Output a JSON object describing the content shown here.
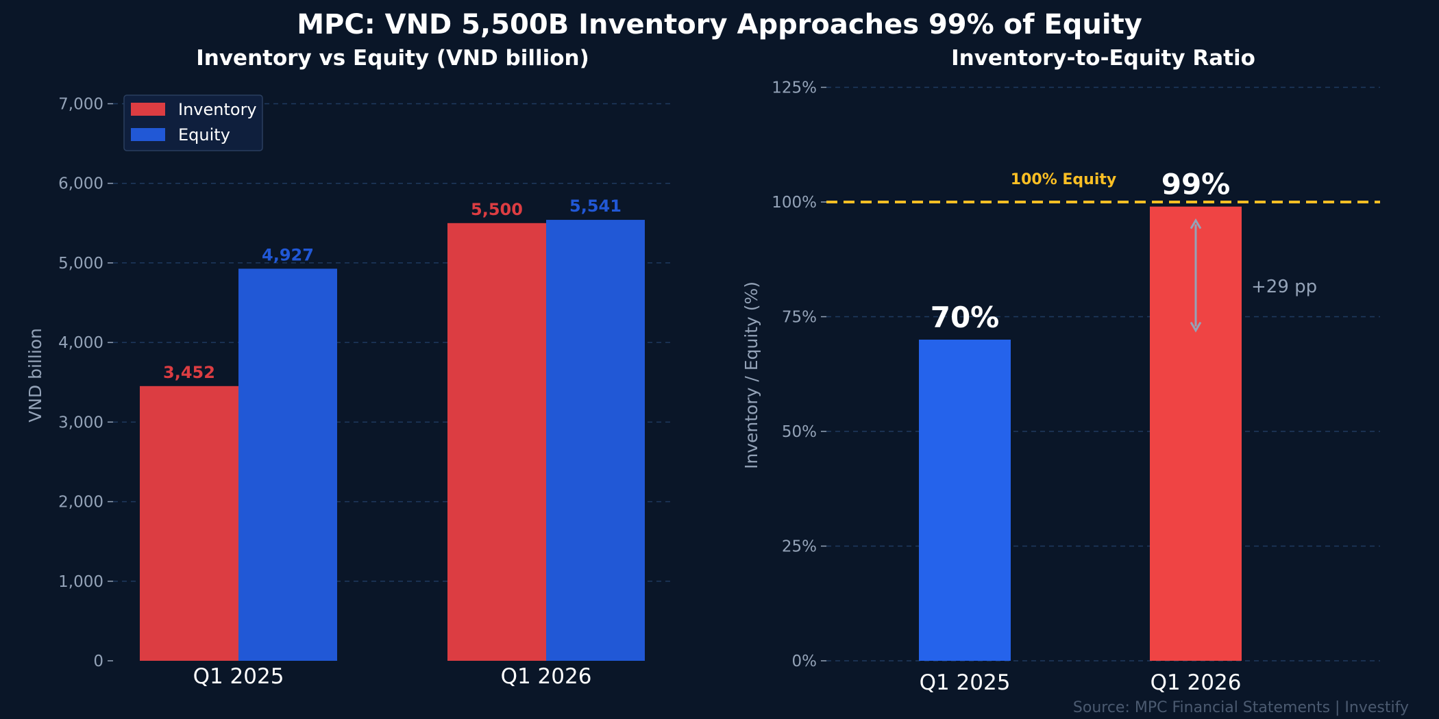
{
  "title": "MPC: VND 5,500B Inventory Approaches 99% of Equity",
  "source": "Source: MPC Financial Statements  |  Investify",
  "colors": {
    "background": "#0a1628",
    "inventory": "#dc3d42",
    "equity": "#2158d6",
    "ratio_q1_2025": "#2563eb",
    "ratio_q1_2026": "#ef4444",
    "reference": "#fbbf24",
    "muted": "#94a3b8"
  },
  "chart_data": [
    {
      "type": "bar",
      "title": "Inventory vs Equity (VND billion)",
      "ylabel": "VND billion",
      "xlabel": "",
      "categories": [
        "Q1 2025",
        "Q1 2026"
      ],
      "series": [
        {
          "name": "Inventory",
          "values": [
            3452,
            5500
          ],
          "labels": [
            "3,452",
            "5,500"
          ],
          "color": "#dc3d42"
        },
        {
          "name": "Equity",
          "values": [
            4927,
            5541
          ],
          "labels": [
            "4,927",
            "5,541"
          ],
          "color": "#2158d6"
        }
      ],
      "ylim": [
        0,
        7400
      ],
      "yticks": [
        0,
        1000,
        2000,
        3000,
        4000,
        5000,
        6000,
        7000
      ],
      "ytick_labels": [
        "0",
        "1,000",
        "2,000",
        "3,000",
        "4,000",
        "5,000",
        "6,000",
        "7,000"
      ],
      "grid": true,
      "legend": "top-left"
    },
    {
      "type": "bar",
      "title": "Inventory-to-Equity Ratio",
      "ylabel": "Inventory / Equity (%)",
      "xlabel": "",
      "categories": [
        "Q1 2025",
        "Q1 2026"
      ],
      "values": [
        70,
        99
      ],
      "value_labels": [
        "70%",
        "99%"
      ],
      "bar_colors": [
        "#2563eb",
        "#ef4444"
      ],
      "ylim": [
        0,
        130
      ],
      "yticks": [
        0,
        25,
        50,
        75,
        100,
        125
      ],
      "ytick_labels": [
        "0%",
        "25%",
        "50%",
        "75%",
        "100%",
        "125%"
      ],
      "grid": true,
      "reference_line": {
        "value": 100,
        "label": "100% Equity",
        "color": "#fbbf24"
      },
      "annotation": {
        "text": "+29 pp",
        "from": 72,
        "to": 96
      }
    }
  ]
}
